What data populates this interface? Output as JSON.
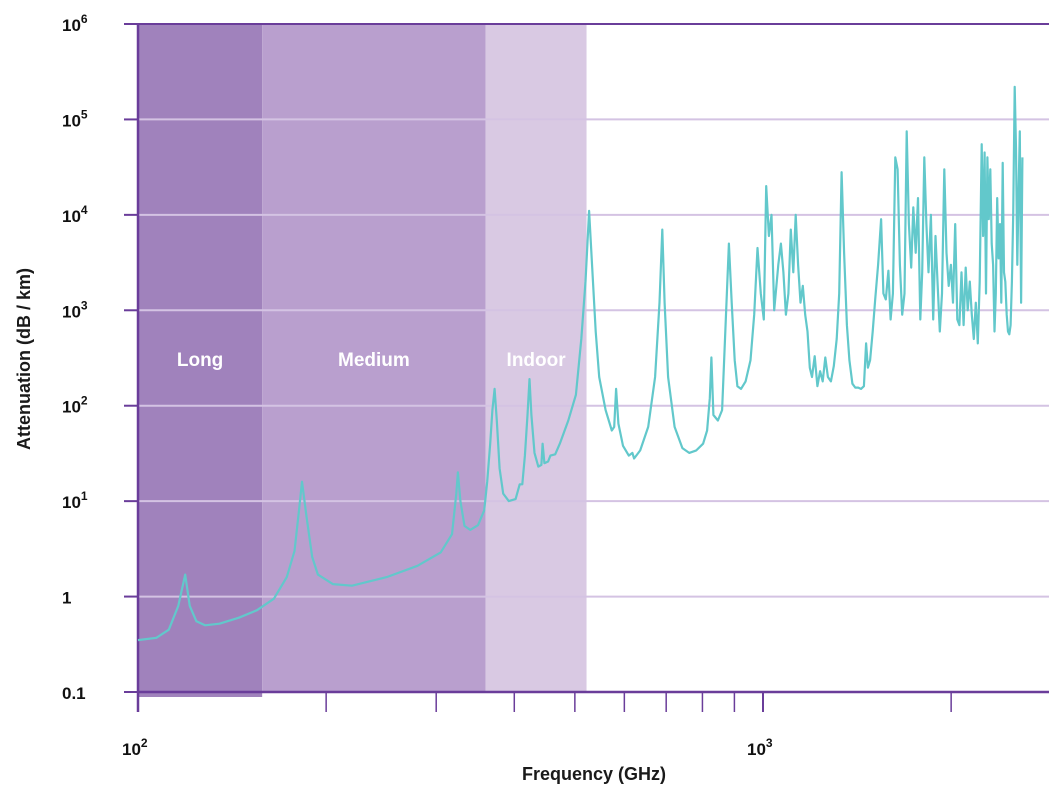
{
  "chart_data": {
    "type": "line",
    "title": "",
    "xlabel": "Frequency (GHz)",
    "ylabel": "Attenuation (dB / km)",
    "x_scale": "log",
    "y_scale": "log",
    "xlim": [
      100,
      2600
    ],
    "ylim": [
      0.1,
      1000000
    ],
    "grid": "horizontal",
    "x_tick_labels": [
      {
        "value": 100,
        "base": "10",
        "exp": "2"
      },
      {
        "value": 1000,
        "base": "10",
        "exp": "3"
      }
    ],
    "x_minor_ticks": [
      200,
      300,
      400,
      500,
      600,
      700,
      800,
      900,
      2000
    ],
    "y_ticks": [
      {
        "value": 0.1,
        "base": "0.1",
        "exp": ""
      },
      {
        "value": 1,
        "base": "1",
        "exp": ""
      },
      {
        "value": 10,
        "base": "10",
        "exp": "1"
      },
      {
        "value": 100,
        "base": "10",
        "exp": "2"
      },
      {
        "value": 1000,
        "base": "10",
        "exp": "3"
      },
      {
        "value": 10000,
        "base": "10",
        "exp": "4"
      },
      {
        "value": 100000,
        "base": "10",
        "exp": "5"
      },
      {
        "value": 1000000,
        "base": "10",
        "exp": "6"
      }
    ],
    "bands": [
      {
        "label": "Long",
        "x0": 100,
        "x1": 158,
        "color": "#a082bc"
      },
      {
        "label": "Medium",
        "x0": 158,
        "x1": 360,
        "color": "#b99fce"
      },
      {
        "label": "Indoor",
        "x0": 360,
        "x1": 522,
        "color": "#d9c9e3"
      }
    ],
    "series": [
      {
        "color": "#62c8cb",
        "points": [
          [
            100,
            0.35
          ],
          [
            107,
            0.37
          ],
          [
            112,
            0.45
          ],
          [
            116,
            0.8
          ],
          [
            119,
            1.7
          ],
          [
            121,
            0.8
          ],
          [
            124,
            0.55
          ],
          [
            128,
            0.5
          ],
          [
            135,
            0.52
          ],
          [
            145,
            0.6
          ],
          [
            155,
            0.72
          ],
          [
            165,
            0.95
          ],
          [
            173,
            1.6
          ],
          [
            178,
            3
          ],
          [
            181,
            8
          ],
          [
            183,
            16
          ],
          [
            186,
            7
          ],
          [
            190,
            2.6
          ],
          [
            194,
            1.7
          ],
          [
            205,
            1.35
          ],
          [
            220,
            1.3
          ],
          [
            250,
            1.6
          ],
          [
            280,
            2.1
          ],
          [
            305,
            2.9
          ],
          [
            318,
            4.5
          ],
          [
            323,
            12
          ],
          [
            325,
            20
          ],
          [
            328,
            10
          ],
          [
            333,
            5.5
          ],
          [
            340,
            5
          ],
          [
            350,
            5.6
          ],
          [
            358,
            8
          ],
          [
            362,
            16
          ],
          [
            366,
            40
          ],
          [
            369,
            90
          ],
          [
            372,
            150
          ],
          [
            375,
            70
          ],
          [
            379,
            22
          ],
          [
            384,
            12
          ],
          [
            392,
            10
          ],
          [
            402,
            10.5
          ],
          [
            408,
            15
          ],
          [
            412,
            15
          ],
          [
            416,
            30
          ],
          [
            420,
            80
          ],
          [
            423,
            190
          ],
          [
            426,
            80
          ],
          [
            431,
            32
          ],
          [
            437,
            23
          ],
          [
            442,
            24
          ],
          [
            444,
            40
          ],
          [
            447,
            25
          ],
          [
            453,
            26
          ],
          [
            457,
            30
          ],
          [
            465,
            31
          ],
          [
            473,
            40
          ],
          [
            488,
            70
          ],
          [
            502,
            130
          ],
          [
            512,
            500
          ],
          [
            520,
            2000
          ],
          [
            527,
            11000
          ],
          [
            533,
            2800
          ],
          [
            540,
            600
          ],
          [
            547,
            200
          ],
          [
            560,
            90
          ],
          [
            573,
            55
          ],
          [
            578,
            60
          ],
          [
            582,
            150
          ],
          [
            587,
            65
          ],
          [
            597,
            38
          ],
          [
            610,
            30
          ],
          [
            618,
            32
          ],
          [
            622,
            28
          ],
          [
            636,
            34
          ],
          [
            655,
            60
          ],
          [
            672,
            200
          ],
          [
            683,
            1200
          ],
          [
            690,
            7000
          ],
          [
            696,
            1200
          ],
          [
            705,
            200
          ],
          [
            722,
            60
          ],
          [
            743,
            36
          ],
          [
            762,
            32
          ],
          [
            782,
            34
          ],
          [
            802,
            40
          ],
          [
            814,
            55
          ],
          [
            822,
            120
          ],
          [
            827,
            320
          ],
          [
            833,
            80
          ],
          [
            847,
            70
          ],
          [
            860,
            90
          ],
          [
            872,
            800
          ],
          [
            882,
            5000
          ],
          [
            891,
            1200
          ],
          [
            901,
            300
          ],
          [
            910,
            160
          ],
          [
            922,
            150
          ],
          [
            938,
            180
          ],
          [
            955,
            300
          ],
          [
            968,
            900
          ],
          [
            980,
            4500
          ],
          [
            992,
            1500
          ],
          [
            1003,
            800
          ],
          [
            1012,
            20000
          ],
          [
            1022,
            6000
          ],
          [
            1032,
            10000
          ],
          [
            1042,
            1000
          ],
          [
            1058,
            3000
          ],
          [
            1068,
            5000
          ],
          [
            1078,
            2500
          ],
          [
            1088,
            900
          ],
          [
            1098,
            1500
          ],
          [
            1108,
            7000
          ],
          [
            1118,
            2500
          ],
          [
            1128,
            10000
          ],
          [
            1138,
            3000
          ],
          [
            1148,
            1200
          ],
          [
            1158,
            1800
          ],
          [
            1168,
            900
          ],
          [
            1178,
            600
          ],
          [
            1188,
            250
          ],
          [
            1198,
            200
          ],
          [
            1210,
            330
          ],
          [
            1222,
            160
          ],
          [
            1234,
            230
          ],
          [
            1246,
            180
          ],
          [
            1258,
            320
          ],
          [
            1270,
            200
          ],
          [
            1284,
            180
          ],
          [
            1298,
            260
          ],
          [
            1312,
            500
          ],
          [
            1324,
            1500
          ],
          [
            1336,
            28000
          ],
          [
            1348,
            4000
          ],
          [
            1362,
            700
          ],
          [
            1375,
            300
          ],
          [
            1390,
            170
          ],
          [
            1405,
            155
          ],
          [
            1420,
            155
          ],
          [
            1435,
            150
          ],
          [
            1450,
            160
          ],
          [
            1462,
            450
          ],
          [
            1472,
            250
          ],
          [
            1484,
            300
          ],
          [
            1498,
            600
          ],
          [
            1512,
            1300
          ],
          [
            1528,
            3000
          ],
          [
            1545,
            9000
          ],
          [
            1558,
            1500
          ],
          [
            1572,
            1300
          ],
          [
            1587,
            2600
          ],
          [
            1600,
            800
          ],
          [
            1614,
            1500
          ],
          [
            1628,
            40000
          ],
          [
            1642,
            30000
          ],
          [
            1656,
            3000
          ],
          [
            1670,
            900
          ],
          [
            1684,
            1500
          ],
          [
            1698,
            75000
          ],
          [
            1712,
            8000
          ],
          [
            1726,
            2800
          ],
          [
            1740,
            12000
          ],
          [
            1755,
            4000
          ],
          [
            1770,
            15000
          ],
          [
            1785,
            800
          ],
          [
            1798,
            2500
          ],
          [
            1812,
            40000
          ],
          [
            1826,
            8000
          ],
          [
            1840,
            2500
          ],
          [
            1856,
            10000
          ],
          [
            1872,
            800
          ],
          [
            1888,
            6000
          ],
          [
            1902,
            2000
          ],
          [
            1918,
            600
          ],
          [
            1934,
            1500
          ],
          [
            1950,
            30000
          ],
          [
            1966,
            4000
          ],
          [
            1982,
            1800
          ],
          [
            1998,
            3000
          ],
          [
            2014,
            1200
          ],
          [
            2030,
            8000
          ],
          [
            2046,
            800
          ],
          [
            2062,
            700
          ],
          [
            2078,
            2500
          ],
          [
            2094,
            700
          ],
          [
            2110,
            2800
          ],
          [
            2126,
            1000
          ],
          [
            2142,
            2000
          ],
          [
            2158,
            900
          ],
          [
            2174,
            500
          ],
          [
            2190,
            1200
          ],
          [
            2206,
            450
          ],
          [
            2222,
            2000
          ],
          [
            2238,
            55000
          ],
          [
            2250,
            6000
          ],
          [
            2262,
            45000
          ],
          [
            2274,
            1500
          ],
          [
            2286,
            40000
          ],
          [
            2298,
            9000
          ],
          [
            2310,
            30000
          ],
          [
            2322,
            5000
          ],
          [
            2334,
            3000
          ],
          [
            2346,
            600
          ],
          [
            2358,
            1500
          ],
          [
            2370,
            15000
          ],
          [
            2382,
            3500
          ],
          [
            2394,
            8000
          ],
          [
            2406,
            1200
          ],
          [
            2418,
            35000
          ],
          [
            2430,
            2500
          ],
          [
            2442,
            2000
          ],
          [
            2454,
            900
          ],
          [
            2466,
            600
          ],
          [
            2478,
            560
          ],
          [
            2490,
            700
          ],
          [
            2502,
            2000
          ],
          [
            2514,
            10000
          ],
          [
            2528,
            220000
          ],
          [
            2540,
            50000
          ],
          [
            2552,
            3000
          ],
          [
            2564,
            18000
          ],
          [
            2576,
            75000
          ],
          [
            2588,
            1200
          ],
          [
            2600,
            40000
          ]
        ]
      }
    ]
  }
}
